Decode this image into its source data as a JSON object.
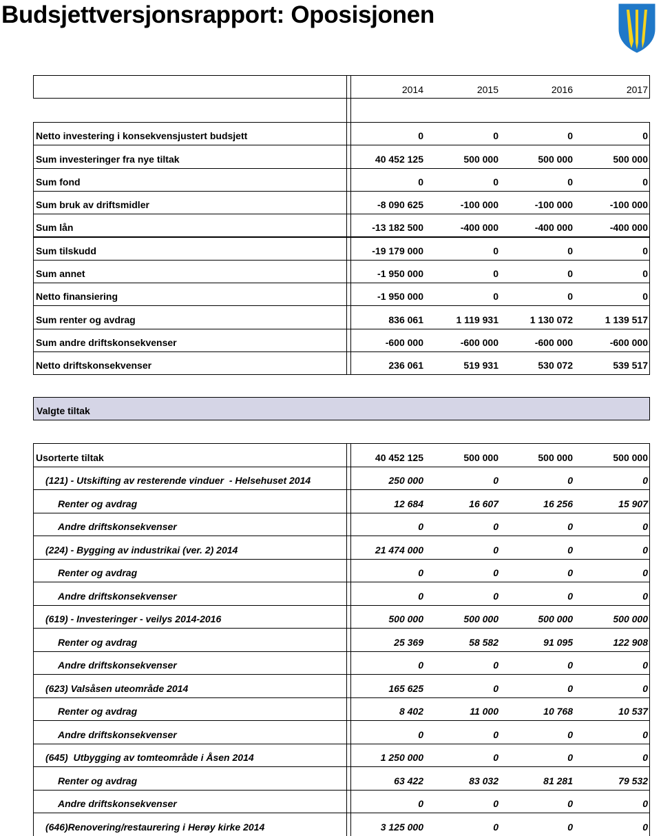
{
  "header": {
    "title": "Budsjettversjonsrapport: Oposisjonen"
  },
  "table1": {
    "columns": [
      "2014",
      "2015",
      "2016",
      "2017"
    ],
    "rows": [
      {
        "label": "Netto investering i konsekvensjustert budsjett",
        "values": [
          "0",
          "0",
          "0",
          "0"
        ]
      },
      {
        "label": "Sum investeringer fra nye tiltak",
        "values": [
          "40 452 125",
          "500 000",
          "500 000",
          "500 000"
        ]
      },
      {
        "label": "Sum fond",
        "values": [
          "0",
          "0",
          "0",
          "0"
        ]
      },
      {
        "label": "Sum bruk av driftsmidler",
        "values": [
          "-8 090 625",
          "-100 000",
          "-100 000",
          "-100 000"
        ]
      },
      {
        "label": "Sum lån",
        "values": [
          "-13 182 500",
          "-400 000",
          "-400 000",
          "-400 000"
        ]
      },
      {
        "label": "Sum tilskudd",
        "values": [
          "-19 179 000",
          "0",
          "0",
          "0"
        ]
      },
      {
        "label": "Sum annet",
        "values": [
          "-1 950 000",
          "0",
          "0",
          "0"
        ]
      },
      {
        "label": "Netto finansiering",
        "values": [
          "-1 950 000",
          "0",
          "0",
          "0"
        ]
      },
      {
        "label": "Sum renter og avdrag",
        "values": [
          "836 061",
          "1 119 931",
          "1 130 072",
          "1 139 517"
        ]
      },
      {
        "label": "Sum andre driftskonsekvenser",
        "values": [
          "-600 000",
          "-600 000",
          "-600 000",
          "-600 000"
        ]
      },
      {
        "label": "Netto driftskonsekvenser",
        "values": [
          "236 061",
          "519 931",
          "530 072",
          "539 517"
        ]
      }
    ]
  },
  "section": {
    "title": "Valgte tiltak"
  },
  "table2": {
    "rows": [
      {
        "label": "Usorterte tiltak",
        "values": [
          "40 452 125",
          "500 000",
          "500 000",
          "500 000"
        ]
      },
      {
        "label": "(121) - Utskifting av resterende vinduer  - Helsehuset 2014",
        "values": [
          "250 000",
          "0",
          "0",
          "0"
        ]
      },
      {
        "label": "Renter og avdrag",
        "values": [
          "12 684",
          "16 607",
          "16 256",
          "15 907"
        ]
      },
      {
        "label": "Andre driftskonsekvenser",
        "values": [
          "0",
          "0",
          "0",
          "0"
        ]
      },
      {
        "label": "(224) - Bygging av industrikai (ver. 2) 2014",
        "values": [
          "21 474 000",
          "0",
          "0",
          "0"
        ]
      },
      {
        "label": "Renter og avdrag",
        "values": [
          "0",
          "0",
          "0",
          "0"
        ]
      },
      {
        "label": "Andre driftskonsekvenser",
        "values": [
          "0",
          "0",
          "0",
          "0"
        ]
      },
      {
        "label": "(619) - Investeringer - veilys 2014-2016",
        "values": [
          "500 000",
          "500 000",
          "500 000",
          "500 000"
        ]
      },
      {
        "label": "Renter og avdrag",
        "values": [
          "25 369",
          "58 582",
          "91 095",
          "122 908"
        ]
      },
      {
        "label": "Andre driftskonsekvenser",
        "values": [
          "0",
          "0",
          "0",
          "0"
        ]
      },
      {
        "label": "(623) Valsåsen uteområde 2014",
        "values": [
          "165 625",
          "0",
          "0",
          "0"
        ]
      },
      {
        "label": "Renter og avdrag",
        "values": [
          "8 402",
          "11 000",
          "10 768",
          "10 537"
        ]
      },
      {
        "label": "Andre driftskonsekvenser",
        "values": [
          "0",
          "0",
          "0",
          "0"
        ]
      },
      {
        "label": "(645)  Utbygging av tomteområde i Åsen 2014",
        "values": [
          "1 250 000",
          "0",
          "0",
          "0"
        ]
      },
      {
        "label": "Renter og avdrag",
        "values": [
          "63 422",
          "83 032",
          "81 281",
          "79 532"
        ]
      },
      {
        "label": "Andre driftskonsekvenser",
        "values": [
          "0",
          "0",
          "0",
          "0"
        ]
      },
      {
        "label": "(646)Renovering/restaurering i Herøy kirke 2014",
        "values": [
          "3 125 000",
          "0",
          "0",
          "0"
        ]
      }
    ]
  }
}
